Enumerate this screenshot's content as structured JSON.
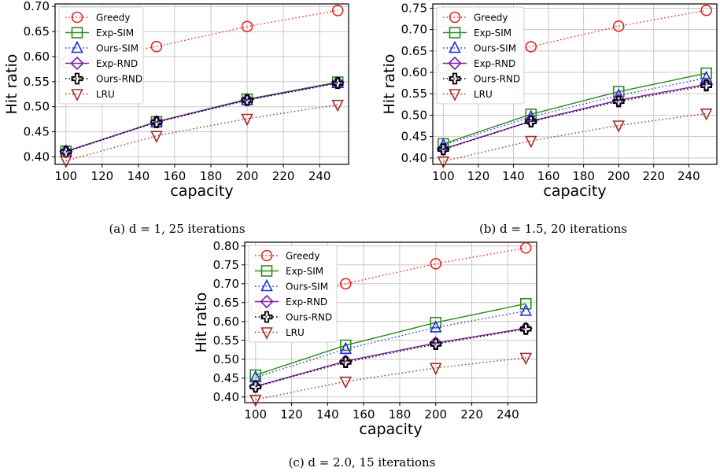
{
  "figure": {
    "captions": [
      "(a) d = 1, 25 iterations",
      "(b) d = 1.5, 20 iterations",
      "(c) d = 2.0, 15 iterations"
    ]
  },
  "styles": {
    "Greedy": {
      "color": "#e32626",
      "marker": "circle",
      "dash": "dotted"
    },
    "Exp-SIM": {
      "color": "#2e8b1f",
      "marker": "square",
      "dash": "solid"
    },
    "Ours-SIM": {
      "color": "#1f2ee0",
      "marker": "triangle-up",
      "dash": "dotted"
    },
    "Exp-RND": {
      "color": "#7a1fa2",
      "marker": "diamond",
      "dash": "solid"
    },
    "Ours-RND": {
      "color": "#000000",
      "marker": "plus",
      "dash": "dotted"
    },
    "LRU": {
      "color": "#a0302a",
      "marker": "triangle-down",
      "dash": "dotted"
    }
  },
  "chart_data": [
    {
      "type": "line",
      "caption": "(a) d = 1, 25 iterations",
      "xlabel": "capacity",
      "ylabel": "Hit ratio",
      "x": [
        100,
        150,
        200,
        250
      ],
      "xlim": [
        94,
        256
      ],
      "ylim": [
        0.385,
        0.705
      ],
      "xticks": [
        "100",
        "120",
        "140",
        "160",
        "180",
        "200",
        "220",
        "240"
      ],
      "xtick_values": [
        100,
        120,
        140,
        160,
        180,
        200,
        220,
        240
      ],
      "yticks": [
        "0.40",
        "0.45",
        "0.50",
        "0.55",
        "0.60",
        "0.65",
        "0.70"
      ],
      "ytick_values": [
        0.4,
        0.45,
        0.5,
        0.55,
        0.6,
        0.65,
        0.7
      ],
      "grid": true,
      "legend": "upper-left",
      "series": [
        {
          "name": "Greedy",
          "values": [
            0.588,
            0.62,
            0.66,
            0.692
          ]
        },
        {
          "name": "Exp-SIM",
          "values": [
            0.411,
            0.47,
            0.515,
            0.549
          ]
        },
        {
          "name": "Ours-SIM",
          "values": [
            0.41,
            0.469,
            0.513,
            0.547
          ]
        },
        {
          "name": "Exp-RND",
          "values": [
            0.411,
            0.47,
            0.514,
            0.548
          ]
        },
        {
          "name": "Ours-RND",
          "values": [
            0.41,
            0.469,
            0.513,
            0.547
          ]
        },
        {
          "name": "LRU",
          "values": [
            0.392,
            0.442,
            0.476,
            0.504
          ]
        }
      ]
    },
    {
      "type": "line",
      "caption": "(b) d = 1.5, 20 iterations",
      "xlabel": "capacity",
      "ylabel": "Hit ratio",
      "x": [
        100,
        150,
        200,
        250
      ],
      "xlim": [
        94,
        256
      ],
      "ylim": [
        0.385,
        0.76
      ],
      "xticks": [
        "100",
        "120",
        "140",
        "160",
        "180",
        "200",
        "220",
        "240"
      ],
      "xtick_values": [
        100,
        120,
        140,
        160,
        180,
        200,
        220,
        240
      ],
      "yticks": [
        "0.40",
        "0.45",
        "0.50",
        "0.55",
        "0.60",
        "0.65",
        "0.70",
        "0.75"
      ],
      "ytick_values": [
        0.4,
        0.45,
        0.5,
        0.55,
        0.6,
        0.65,
        0.7,
        0.75
      ],
      "grid": true,
      "legend": "upper-left",
      "series": [
        {
          "name": "Greedy",
          "values": [
            0.61,
            0.66,
            0.708,
            0.745
          ]
        },
        {
          "name": "Exp-SIM",
          "values": [
            0.433,
            0.502,
            0.555,
            0.598
          ]
        },
        {
          "name": "Ours-SIM",
          "values": [
            0.43,
            0.496,
            0.546,
            0.587
          ]
        },
        {
          "name": "Exp-RND",
          "values": [
            0.421,
            0.486,
            0.535,
            0.572
          ]
        },
        {
          "name": "Ours-RND",
          "values": [
            0.42,
            0.485,
            0.532,
            0.569
          ]
        },
        {
          "name": "LRU",
          "values": [
            0.392,
            0.44,
            0.476,
            0.504
          ]
        }
      ]
    },
    {
      "type": "line",
      "caption": "(c) d = 2.0, 15 iterations",
      "xlabel": "capacity",
      "ylabel": "Hit ratio",
      "x": [
        100,
        150,
        200,
        250
      ],
      "xlim": [
        94,
        256
      ],
      "ylim": [
        0.385,
        0.81
      ],
      "xticks": [
        "100",
        "120",
        "140",
        "160",
        "180",
        "200",
        "220",
        "240"
      ],
      "xtick_values": [
        100,
        120,
        140,
        160,
        180,
        200,
        220,
        240
      ],
      "yticks": [
        "0.40",
        "0.45",
        "0.50",
        "0.55",
        "0.60",
        "0.65",
        "0.70",
        "0.75",
        "0.80"
      ],
      "ytick_values": [
        0.4,
        0.45,
        0.5,
        0.55,
        0.6,
        0.65,
        0.7,
        0.75,
        0.8
      ],
      "grid": true,
      "legend": "upper-left",
      "series": [
        {
          "name": "Greedy",
          "values": [
            0.635,
            0.7,
            0.753,
            0.795
          ]
        },
        {
          "name": "Exp-SIM",
          "values": [
            0.458,
            0.537,
            0.597,
            0.647
          ]
        },
        {
          "name": "Ours-SIM",
          "values": [
            0.452,
            0.527,
            0.584,
            0.628
          ]
        },
        {
          "name": "Exp-RND",
          "values": [
            0.428,
            0.495,
            0.543,
            0.582
          ]
        },
        {
          "name": "Ours-RND",
          "values": [
            0.427,
            0.492,
            0.54,
            0.58
          ]
        },
        {
          "name": "LRU",
          "values": [
            0.393,
            0.441,
            0.477,
            0.504
          ]
        }
      ]
    }
  ]
}
